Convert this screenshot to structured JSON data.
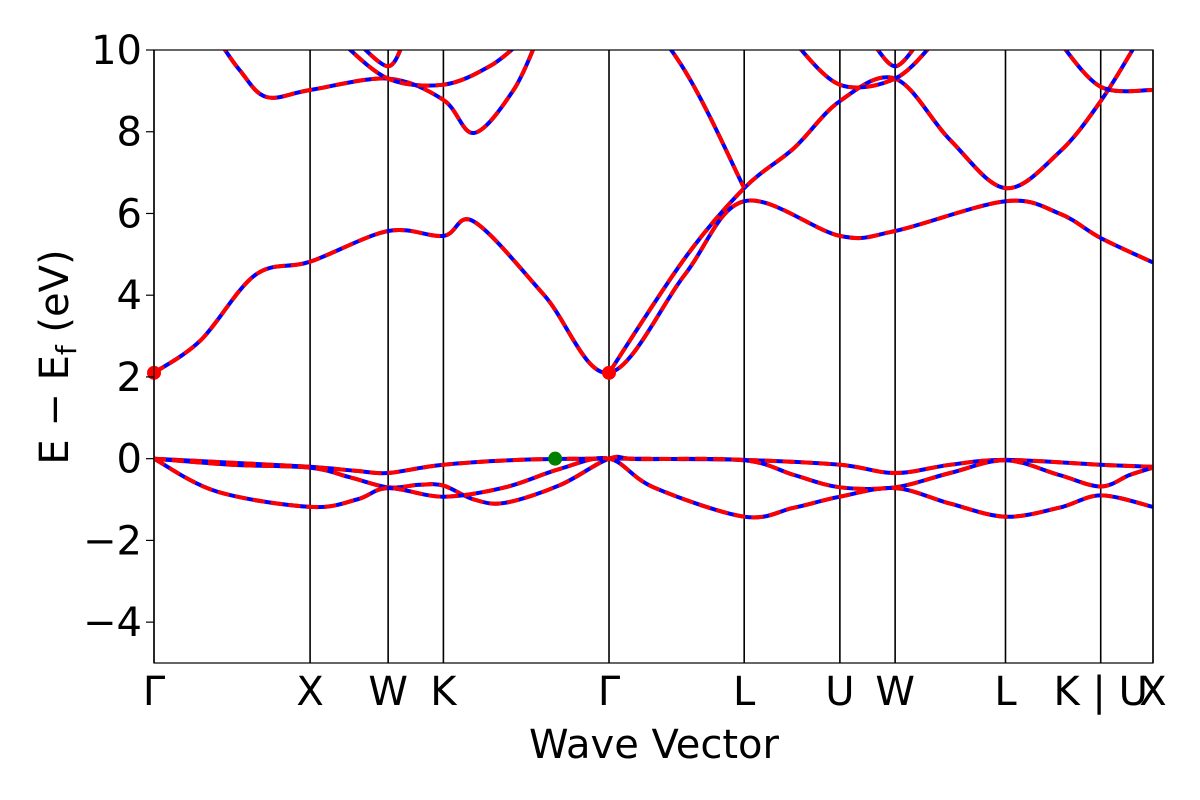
{
  "chart_data": {
    "type": "line",
    "xlabel": "Wave Vector",
    "ylabel": "E − E",
    "ylabel_sub": "f",
    "ylabel_unit": " (eV)",
    "ylim": [
      -5,
      10
    ],
    "yticks": [
      -4,
      -2,
      0,
      2,
      4,
      6,
      8,
      10
    ],
    "ytick_labels": [
      "−4",
      "−2",
      "0",
      "2",
      "4",
      "6",
      "8",
      "10"
    ],
    "xlim": [
      0,
      6.4
    ],
    "kpoints": [
      {
        "label": "Γ",
        "x": 0
      },
      {
        "label": "X",
        "x": 1.0
      },
      {
        "label": "W",
        "x": 1.5
      },
      {
        "label": "K",
        "x": 1.854
      },
      {
        "label": "Γ",
        "x": 2.915
      },
      {
        "label": "L",
        "x": 3.781
      },
      {
        "label": "U",
        "x": 4.394
      },
      {
        "label": "W",
        "x": 4.748
      },
      {
        "label": "L",
        "x": 5.455
      },
      {
        "label": "K | U",
        "x": 6.065
      },
      {
        "label": "X",
        "x": 6.4
      }
    ],
    "band_colors": {
      "solid": "#0000ff",
      "dashed": "#ff0000"
    },
    "series": [
      {
        "points": [
          [
            0,
            0
          ],
          [
            0.5,
            -0.1
          ],
          [
            1.0,
            -0.2
          ],
          [
            1.3,
            -0.3
          ],
          [
            1.5,
            -0.35
          ],
          [
            1.854,
            -0.15
          ],
          [
            2.4,
            -0.02
          ],
          [
            2.915,
            0
          ],
          [
            3.4,
            -0.01
          ],
          [
            3.781,
            -0.03
          ],
          [
            4.394,
            -0.15
          ],
          [
            4.748,
            -0.35
          ],
          [
            5.1,
            -0.15
          ],
          [
            5.455,
            -0.03
          ],
          [
            6.065,
            -0.15
          ],
          [
            6.4,
            -0.2
          ]
        ]
      },
      {
        "points": [
          [
            0,
            0
          ],
          [
            0.5,
            -0.15
          ],
          [
            1.0,
            -0.22
          ],
          [
            1.25,
            -0.45
          ],
          [
            1.5,
            -0.7
          ],
          [
            1.7,
            -0.64
          ],
          [
            1.854,
            -0.66
          ],
          [
            2.05,
            -1.0
          ],
          [
            2.25,
            -1.08
          ],
          [
            2.6,
            -0.65
          ],
          [
            2.915,
            0
          ],
          [
            3.1,
            -0.01
          ],
          [
            3.781,
            -0.04
          ],
          [
            4.1,
            -0.4
          ],
          [
            4.394,
            -0.7
          ],
          [
            4.748,
            -0.7
          ],
          [
            5.1,
            -0.35
          ],
          [
            5.455,
            -0.04
          ],
          [
            5.8,
            -0.4
          ],
          [
            6.065,
            -0.68
          ],
          [
            6.25,
            -0.4
          ],
          [
            6.4,
            -0.22
          ]
        ]
      },
      {
        "points": [
          [
            0,
            0
          ],
          [
            0.4,
            -0.8
          ],
          [
            1.0,
            -1.18
          ],
          [
            1.3,
            -1.0
          ],
          [
            1.5,
            -0.72
          ],
          [
            1.854,
            -0.93
          ],
          [
            2.25,
            -0.7
          ],
          [
            2.6,
            -0.25
          ],
          [
            2.915,
            0
          ],
          [
            3.2,
            -0.7
          ],
          [
            3.781,
            -1.42
          ],
          [
            4.1,
            -1.2
          ],
          [
            4.394,
            -0.93
          ],
          [
            4.748,
            -0.72
          ],
          [
            5.1,
            -1.1
          ],
          [
            5.455,
            -1.42
          ],
          [
            5.8,
            -1.2
          ],
          [
            6.065,
            -0.9
          ],
          [
            6.4,
            -1.18
          ]
        ]
      },
      {
        "points": [
          [
            0,
            2.1
          ],
          [
            0.3,
            2.9
          ],
          [
            0.65,
            4.5
          ],
          [
            1.0,
            4.82
          ],
          [
            1.5,
            5.57
          ],
          [
            1.854,
            5.45
          ],
          [
            2.05,
            5.8
          ],
          [
            2.5,
            4.0
          ],
          [
            2.915,
            2.1
          ],
          [
            3.4,
            4.5
          ],
          [
            3.781,
            6.3
          ],
          [
            4.394,
            5.45
          ],
          [
            4.748,
            5.57
          ],
          [
            5.455,
            6.3
          ],
          [
            5.8,
            6.0
          ],
          [
            6.065,
            5.4
          ],
          [
            6.4,
            4.8
          ]
        ]
      },
      {
        "points": [
          [
            2.915,
            2.1
          ],
          [
            3.4,
            4.9
          ],
          [
            3.781,
            6.62
          ],
          [
            4.1,
            7.6
          ],
          [
            4.394,
            8.75
          ],
          [
            4.748,
            9.3
          ],
          [
            5.1,
            7.8
          ],
          [
            5.455,
            6.62
          ],
          [
            5.8,
            7.5
          ],
          [
            6.065,
            8.75
          ],
          [
            6.3,
            10.2
          ]
        ]
      },
      {
        "points": [
          [
            0.42,
            10.2
          ],
          [
            0.55,
            9.5
          ],
          [
            0.72,
            8.85
          ],
          [
            1.0,
            9.02
          ],
          [
            1.5,
            9.3
          ],
          [
            1.854,
            8.78
          ],
          [
            2.05,
            7.97
          ],
          [
            2.3,
            9.0
          ],
          [
            2.45,
            10.2
          ]
        ]
      },
      {
        "points": [
          [
            1.2,
            10.2
          ],
          [
            1.5,
            9.3
          ],
          [
            1.854,
            9.15
          ],
          [
            2.15,
            9.6
          ],
          [
            2.35,
            10.2
          ]
        ]
      },
      {
        "points": [
          [
            1.3,
            10.2
          ],
          [
            1.5,
            9.6
          ],
          [
            1.6,
            10.2
          ]
        ]
      },
      {
        "points": [
          [
            2.915,
            12.0
          ],
          [
            3.4,
            9.5
          ],
          [
            3.781,
            6.62
          ]
        ]
      },
      {
        "points": [
          [
            4.1,
            10.2
          ],
          [
            4.394,
            9.15
          ],
          [
            4.748,
            9.3
          ],
          [
            5.0,
            10.2
          ]
        ]
      },
      {
        "points": [
          [
            4.6,
            10.2
          ],
          [
            4.748,
            9.6
          ],
          [
            4.9,
            10.2
          ]
        ]
      },
      {
        "points": [
          [
            5.8,
            10.2
          ],
          [
            6.065,
            9.1
          ],
          [
            6.4,
            9.02
          ]
        ]
      }
    ],
    "markers": [
      {
        "x": 0,
        "y": 2.1,
        "color": "#ff0000"
      },
      {
        "x": 2.915,
        "y": 2.1,
        "color": "#ff0000"
      },
      {
        "x": 2.57,
        "y": 0,
        "color": "#008000"
      }
    ]
  }
}
